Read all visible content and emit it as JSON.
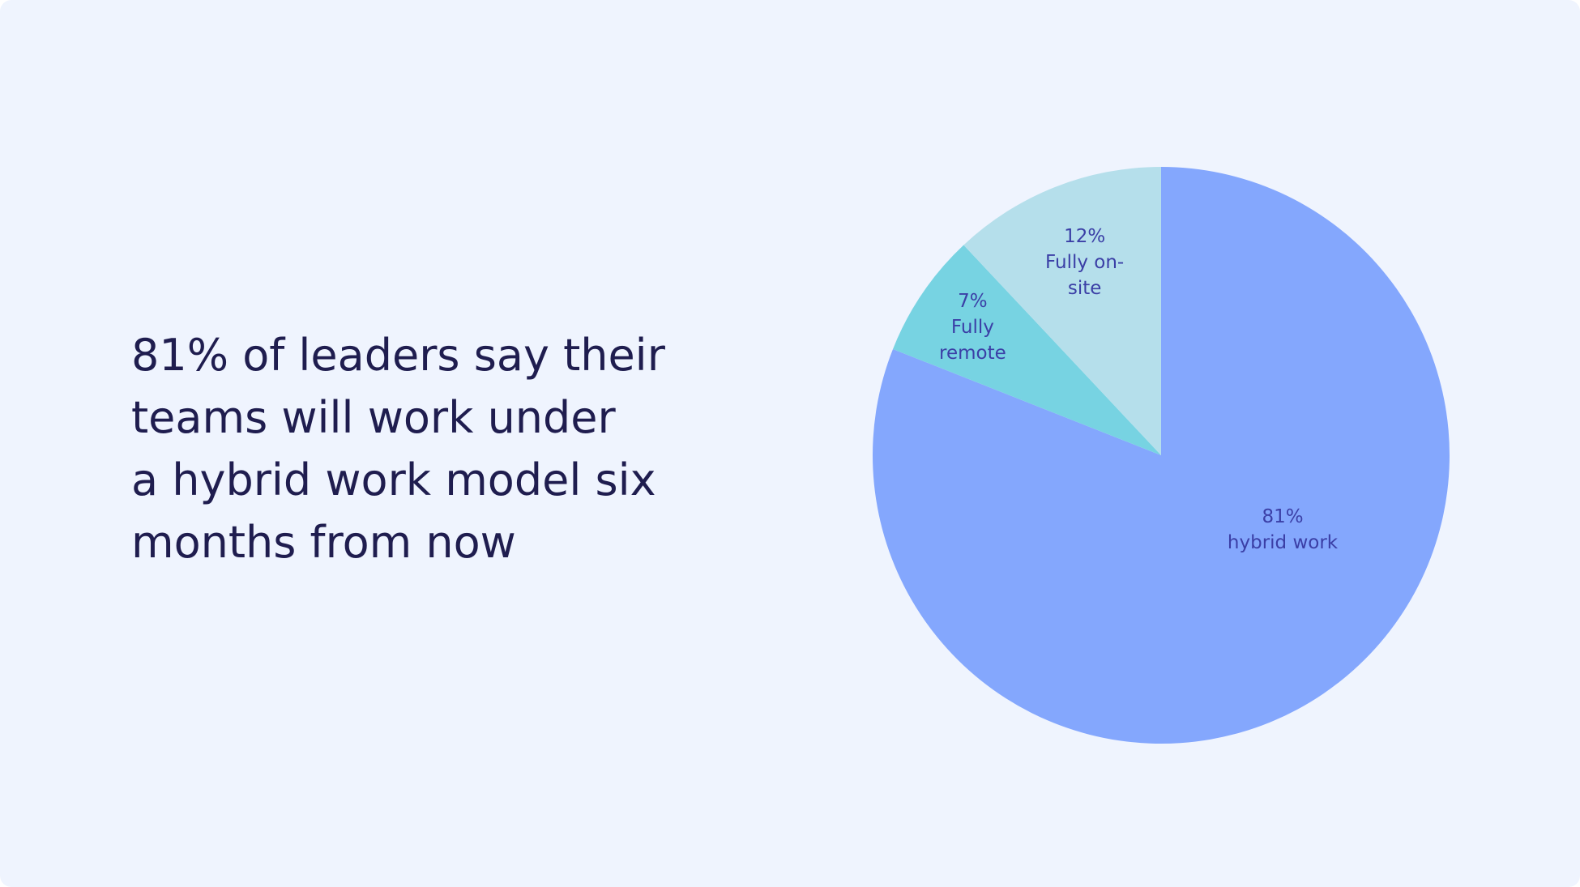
{
  "chart_data": {
    "type": "pie",
    "title": "81% of leaders say their\nteams will work under\na hybrid work model six\nmonths from now",
    "categories": [
      "hybrid work",
      "Fully remote",
      "Fully on-site"
    ],
    "values": [
      81,
      7,
      12
    ],
    "value_labels": [
      "81%",
      "7%",
      "12%"
    ],
    "colors": [
      "#84a7fd",
      "#77d3e2",
      "#b5dfeb"
    ]
  }
}
